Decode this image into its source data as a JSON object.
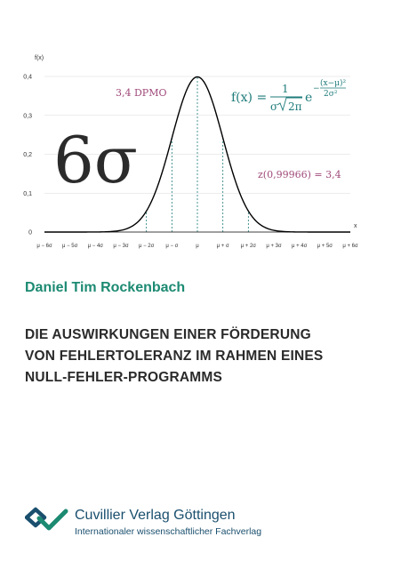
{
  "chart_data": {
    "type": "line",
    "ylabel": "f(x)",
    "xlabel": "x",
    "y_ticks": [
      "0",
      "0,1",
      "0,2",
      "0,3",
      "0,4"
    ],
    "ylim": [
      0,
      0.4
    ],
    "x_ticks": [
      "μ − 6σ",
      "μ − 5σ",
      "μ − 4σ",
      "μ − 3σ",
      "μ − 2σ",
      "μ − σ",
      "μ",
      "μ + σ",
      "μ + 2σ",
      "μ + 3σ",
      "μ + 4σ",
      "μ + 5σ",
      "μ + 6σ"
    ],
    "xlim": [
      -6,
      6
    ],
    "grid": "horizontal",
    "series": [
      {
        "curve": "standard normal density",
        "color": "#000000",
        "x": [
          -6,
          -5,
          -4,
          -3.5,
          -3,
          -2.5,
          -2,
          -1.5,
          -1,
          -0.5,
          0,
          0.5,
          1,
          1.5,
          2,
          2.5,
          3,
          3.5,
          4,
          5,
          6
        ],
        "y": [
          0,
          0,
          0.0001,
          0.0009,
          0.0044,
          0.0175,
          0.054,
          0.1295,
          0.242,
          0.3521,
          0.3989,
          0.3521,
          0.242,
          0.1295,
          0.054,
          0.0175,
          0.0044,
          0.0009,
          0.0001,
          0,
          0
        ]
      }
    ],
    "dashed_verticals_x": [
      -2,
      -1,
      0,
      1,
      2
    ],
    "annotations": {
      "big_symbol": "6σ",
      "dpmo": "3,4 DPMO",
      "z_value": "z(0,99966) = 3,4",
      "formula_lhs": "f(x) =",
      "formula_numerator": "1",
      "formula_denominator_sigma": "σ",
      "formula_denominator_root": "2π",
      "formula_e": "e",
      "formula_exp_numerator": "(x−μ)²",
      "formula_exp_denominator": "2σ²",
      "formula_exp_sign": "−"
    },
    "colors": {
      "curve": "#000000",
      "dashed": "#1e7b7a",
      "grid": "#d8d8d8",
      "annotation": "#a04a7a",
      "formula": "#1e7b7a"
    }
  },
  "author": "Daniel Tim Rockenbach",
  "title_lines": [
    "DIE AUSWIRKUNGEN EINER FÖRDERUNG",
    "VON FEHLERTOLERANZ IM RAHMEN EINES",
    "NULL-FEHLER-PROGRAMMS"
  ],
  "publisher": {
    "name": "Cuvillier Verlag Göttingen",
    "tagline": "Internationaler wissenschaftlicher Fachverlag",
    "logo_icon": "cuvillier-logo-icon",
    "colors": {
      "logo_dark": "#1a4f6e",
      "logo_teal": "#1c8a72"
    }
  }
}
